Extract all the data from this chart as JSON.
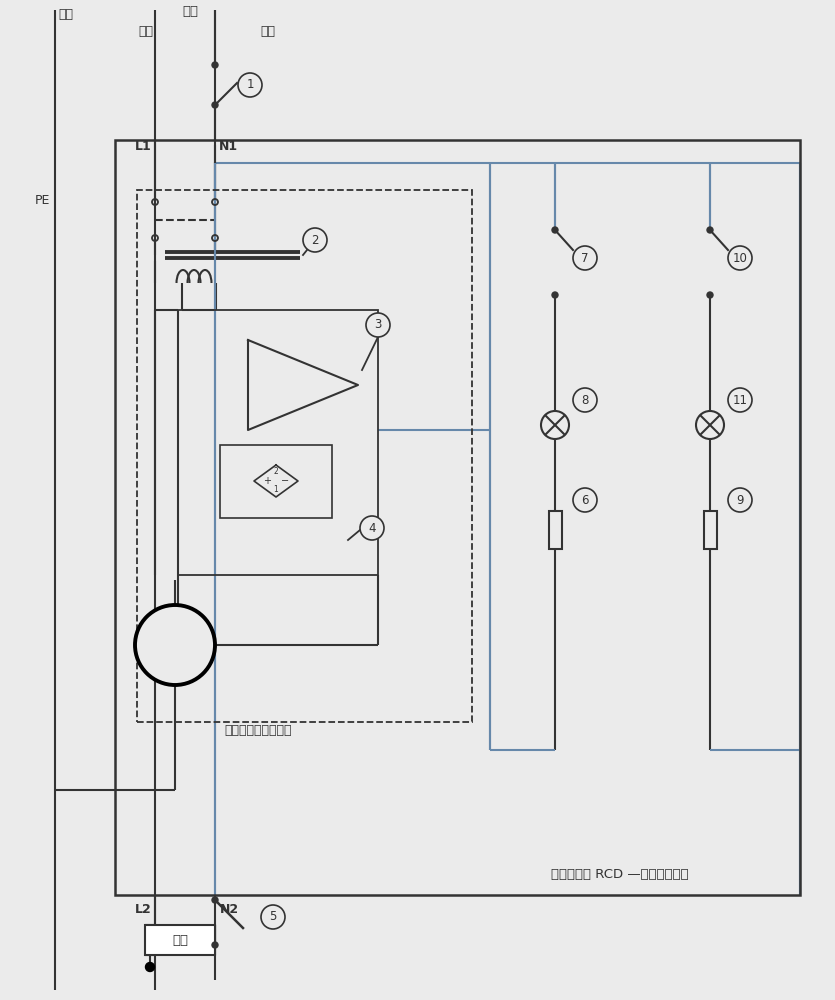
{
  "bg_color": "#ebebeb",
  "line_color": "#333333",
  "blue_color": "#6688aa",
  "title_text": "漏电保护器 RCD —双测试电路型",
  "inner_label": "漏电保护器主要结构",
  "label_ground": "地线",
  "label_fire": "火线",
  "label_zero": "零线",
  "label_source": "电源",
  "label_PE": "PE",
  "label_L1": "L1",
  "label_N1": "N1",
  "label_L2": "L2",
  "label_N2": "N2",
  "label_load": "负载"
}
